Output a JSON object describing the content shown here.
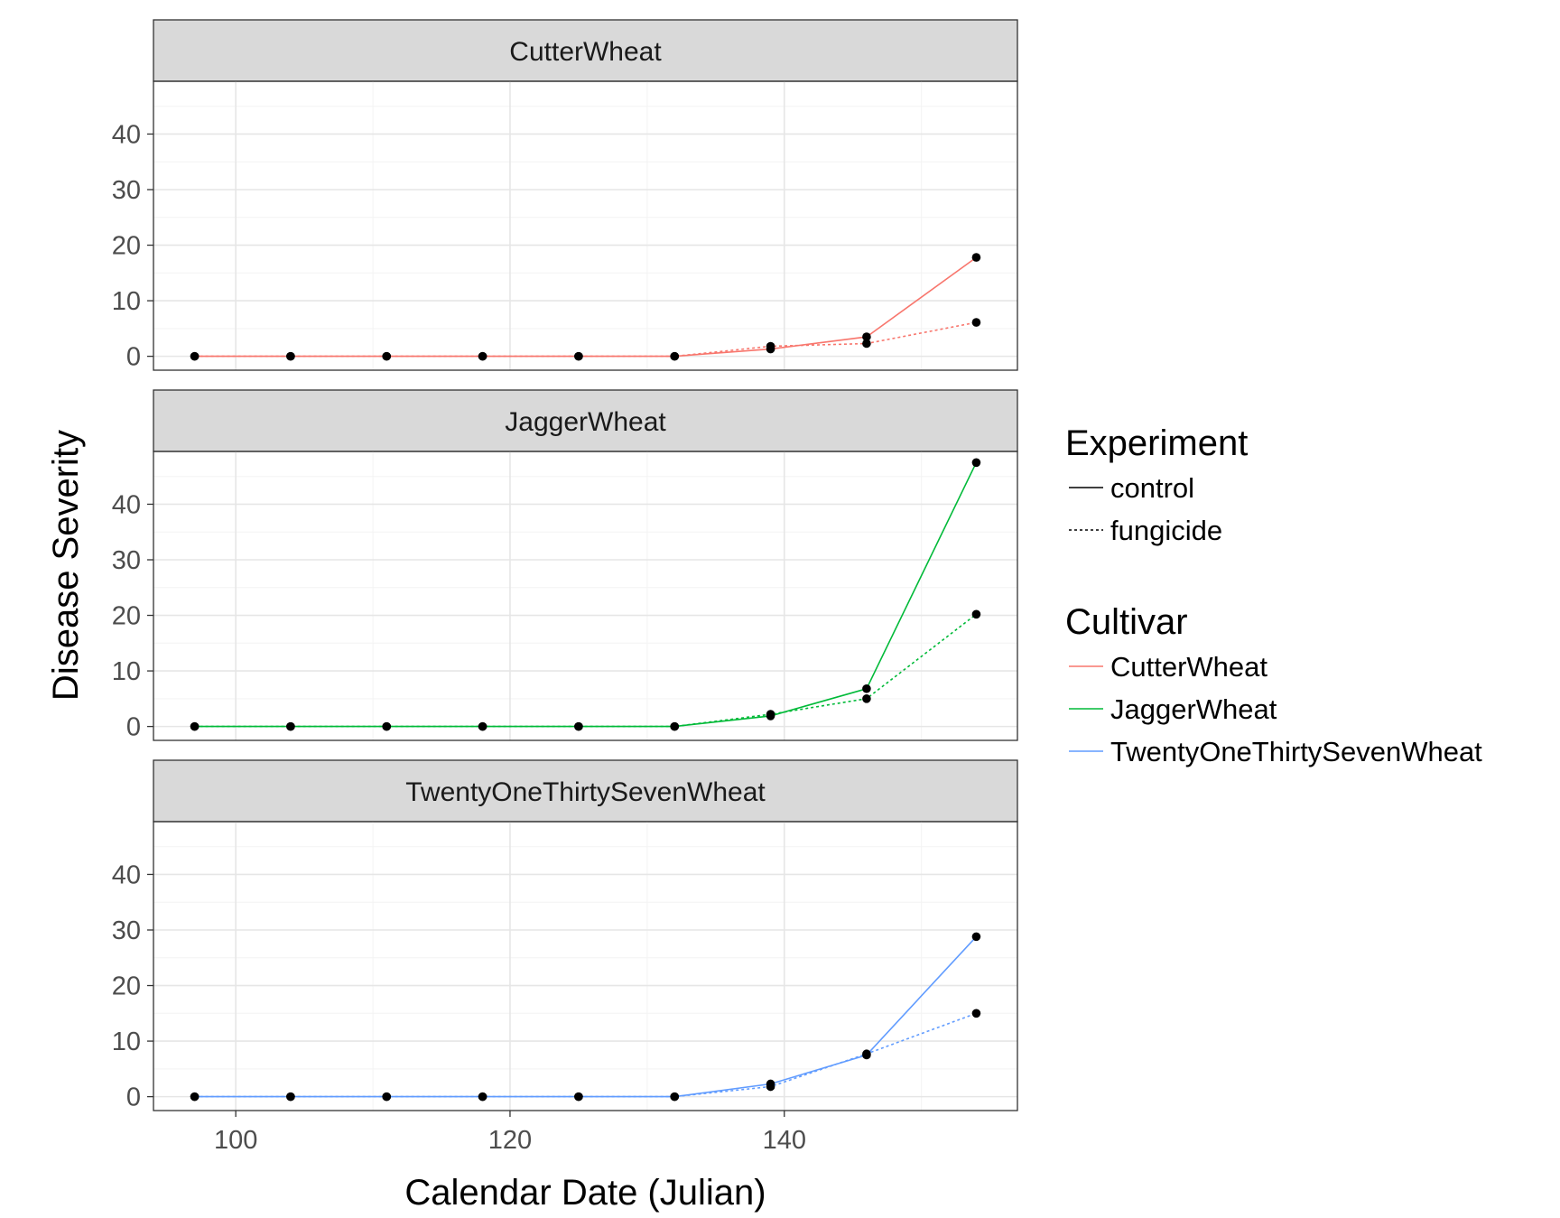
{
  "chart_data": {
    "type": "line",
    "xlabel": "Calendar Date (Julian)",
    "ylabel": "Disease Severity",
    "xlim": [
      94,
      157
    ],
    "ylim": [
      -2.5,
      49.5
    ],
    "x_ticks": [
      100,
      120,
      140
    ],
    "y_ticks": [
      0,
      10,
      20,
      30,
      40
    ],
    "grid": true,
    "legend": {
      "placement": "right",
      "experiment_title": "Experiment",
      "experiment_entries": [
        {
          "label": "control",
          "dash": "solid"
        },
        {
          "label": "fungicide",
          "dash": "dotted"
        }
      ],
      "cultivar_title": "Cultivar",
      "cultivar_entries": [
        {
          "label": "CutterWheat",
          "color": "#F8766D"
        },
        {
          "label": "JaggerWheat",
          "color": "#00BA38"
        },
        {
          "label": "TwentyOneThirtySevenWheat",
          "color": "#619CFF"
        }
      ]
    },
    "facets": [
      {
        "title": "CutterWheat",
        "color": "#F8766D",
        "series": [
          {
            "experiment": "control",
            "x": [
              97,
              104,
              111,
              118,
              125,
              132,
              139,
              146,
              154
            ],
            "y": [
              0,
              0,
              0,
              0,
              0,
              0,
              1.3,
              3.5,
              17.8
            ]
          },
          {
            "experiment": "fungicide",
            "x": [
              97,
              104,
              111,
              118,
              125,
              132,
              139,
              146,
              154
            ],
            "y": [
              0,
              0,
              0,
              0,
              0,
              0,
              1.8,
              2.3,
              6.1
            ]
          }
        ]
      },
      {
        "title": "JaggerWheat",
        "color": "#00BA38",
        "series": [
          {
            "experiment": "control",
            "x": [
              97,
              104,
              111,
              118,
              125,
              132,
              139,
              146,
              154
            ],
            "y": [
              0,
              0,
              0,
              0,
              0,
              0,
              1.9,
              6.8,
              47.5
            ]
          },
          {
            "experiment": "fungicide",
            "x": [
              97,
              104,
              111,
              118,
              125,
              132,
              139,
              146,
              154
            ],
            "y": [
              0,
              0,
              0,
              0,
              0,
              0,
              2.2,
              5.0,
              20.2
            ]
          }
        ]
      },
      {
        "title": "TwentyOneThirtySevenWheat",
        "color": "#619CFF",
        "series": [
          {
            "experiment": "control",
            "x": [
              97,
              104,
              111,
              118,
              125,
              132,
              139,
              146,
              154
            ],
            "y": [
              0,
              0,
              0,
              0,
              0,
              0,
              2.3,
              7.5,
              28.8
            ]
          },
          {
            "experiment": "fungicide",
            "x": [
              97,
              104,
              111,
              118,
              125,
              132,
              139,
              146,
              154
            ],
            "y": [
              0,
              0,
              0,
              0,
              0,
              0,
              1.8,
              7.7,
              15.0
            ]
          }
        ]
      }
    ]
  }
}
